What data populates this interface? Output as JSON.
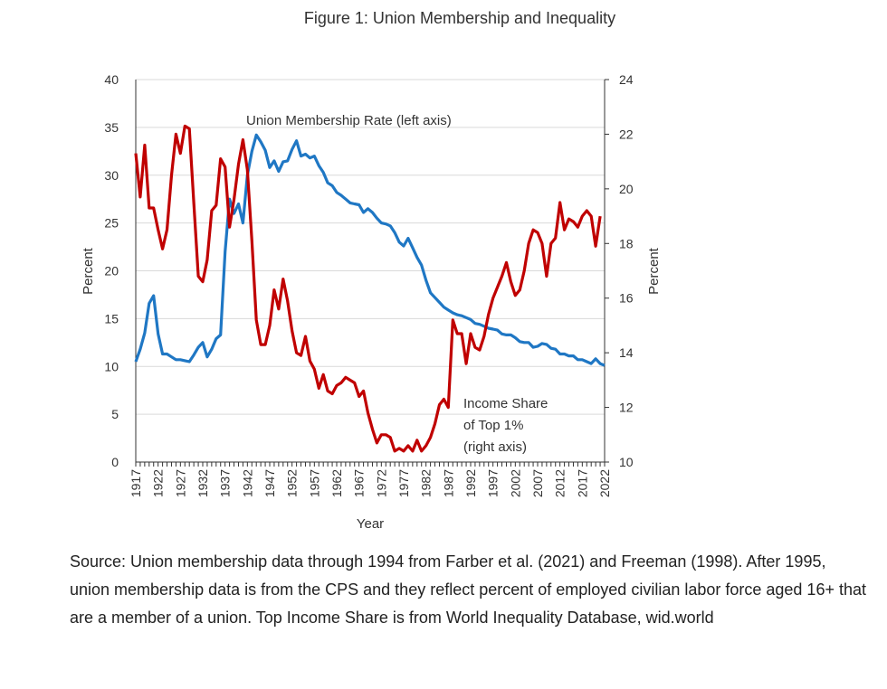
{
  "title": "Figure 1: Union Membership and Inequality",
  "source": "Source: Union membership data through 1994 from Farber et al. (2021) and Freeman (1998). After 1995, union membership data is from the CPS and they reflect percent of employed civilian labor force aged 16+ that are a member of a union.  Top Income Share is from World Inequality Database, wid.world",
  "chart_data": {
    "type": "line",
    "title": "Figure 1: Union Membership and Inequality",
    "xlabel": "Year",
    "ylabel": "Percent",
    "y2label": "Percent",
    "xlim": [
      1917,
      2022
    ],
    "ylim": [
      0,
      40
    ],
    "y2lim": [
      10,
      24
    ],
    "x_ticks": [
      "1917",
      "1922",
      "1927",
      "1932",
      "1937",
      "1942",
      "1947",
      "1952",
      "1957",
      "1962",
      "1967",
      "1972",
      "1977",
      "1982",
      "1987",
      "1992",
      "1997",
      "2002",
      "2007",
      "2012",
      "2017",
      "2022"
    ],
    "y_ticks": [
      "0",
      "5",
      "10",
      "15",
      "20",
      "25",
      "30",
      "35",
      "40"
    ],
    "y2_ticks": [
      "10",
      "12",
      "14",
      "16",
      "18",
      "20",
      "22",
      "24"
    ],
    "grid": true,
    "colors": {
      "union": "#1f77c4",
      "income": "#c00000"
    },
    "annotations": {
      "union": "Union Membership Rate (left axis)",
      "income": [
        "Income Share",
        "of Top 1%",
        "(right axis)"
      ]
    },
    "series": [
      {
        "name": "Union Membership Rate (left axis)",
        "axis": "left",
        "start_year": 1917,
        "values": [
          10.5,
          11.8,
          13.5,
          16.6,
          17.4,
          13.4,
          11.3,
          11.3,
          11.0,
          10.7,
          10.7,
          10.6,
          10.5,
          11.2,
          12.0,
          12.5,
          11.0,
          11.8,
          12.9,
          13.3,
          22.0,
          27.5,
          26.0,
          27.0,
          25.0,
          30.0,
          32.5,
          34.2,
          33.5,
          32.6,
          30.8,
          31.5,
          30.4,
          31.4,
          31.5,
          32.7,
          33.6,
          32.0,
          32.2,
          31.8,
          32.0,
          31.0,
          30.3,
          29.2,
          28.9,
          28.2,
          27.9,
          27.5,
          27.1,
          27.0,
          26.9,
          26.1,
          26.5,
          26.1,
          25.5,
          25.0,
          24.9,
          24.7,
          24.0,
          23.0,
          22.6,
          23.4,
          22.4,
          21.4,
          20.6,
          19.0,
          17.7,
          17.2,
          16.7,
          16.2,
          15.9,
          15.6,
          15.4,
          15.3,
          15.1,
          14.9,
          14.5,
          14.4,
          14.2,
          14.0,
          13.9,
          13.8,
          13.4,
          13.3,
          13.3,
          13.0,
          12.6,
          12.5,
          12.5,
          12.0,
          12.1,
          12.4,
          12.3,
          11.9,
          11.8,
          11.3,
          11.3,
          11.1,
          11.1,
          10.7,
          10.7,
          10.5,
          10.3,
          10.8,
          10.3,
          10.1
        ]
      },
      {
        "name": "Income Share of Top 1% (right axis)",
        "axis": "right",
        "start_year": 1917,
        "values": [
          21.3,
          19.7,
          21.6,
          19.3,
          19.3,
          18.5,
          17.8,
          18.5,
          20.5,
          22.0,
          21.3,
          22.3,
          22.2,
          19.5,
          16.8,
          16.6,
          17.4,
          19.2,
          19.4,
          21.1,
          20.8,
          18.6,
          19.6,
          20.9,
          21.8,
          20.7,
          18.1,
          15.2,
          14.3,
          14.3,
          15.0,
          16.3,
          15.6,
          16.7,
          15.9,
          14.8,
          14.0,
          13.9,
          14.6,
          13.7,
          13.4,
          12.7,
          13.2,
          12.6,
          12.5,
          12.8,
          12.9,
          13.1,
          13.0,
          12.9,
          12.4,
          12.6,
          11.8,
          11.2,
          10.7,
          11.0,
          11.0,
          10.9,
          10.4,
          10.5,
          10.4,
          10.6,
          10.4,
          10.8,
          10.4,
          10.6,
          10.9,
          11.4,
          12.1,
          12.3,
          12.0,
          15.2,
          14.7,
          14.7,
          13.6,
          14.7,
          14.2,
          14.1,
          14.6,
          15.4,
          16.0,
          16.4,
          16.8,
          17.3,
          16.6,
          16.1,
          16.3,
          17.0,
          18.0,
          18.5,
          18.4,
          18.0,
          16.8,
          18.0,
          18.2,
          19.5,
          18.5,
          18.9,
          18.8,
          18.6,
          19.0,
          19.2,
          19.0,
          17.9,
          19.0
        ]
      }
    ]
  }
}
